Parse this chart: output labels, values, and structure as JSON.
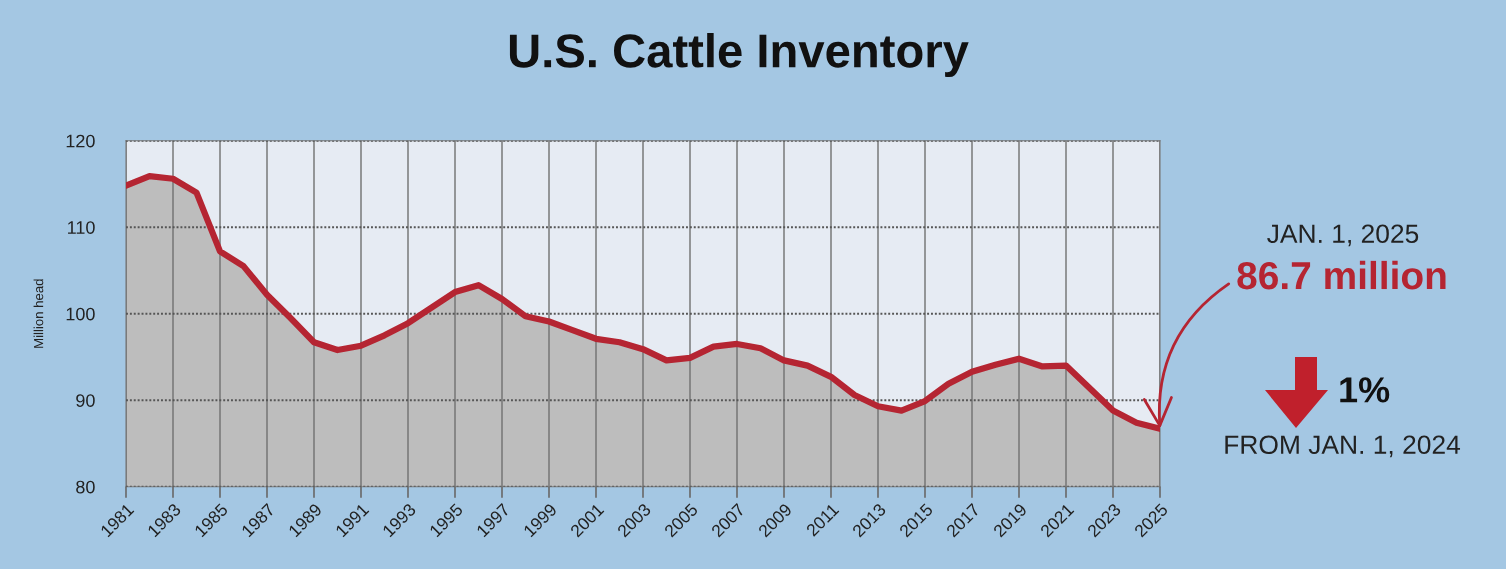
{
  "chart_data": {
    "type": "area",
    "title": "U.S. Cattle Inventory",
    "ylabel": "Million head",
    "x": [
      1981,
      1982,
      1983,
      1984,
      1985,
      1986,
      1987,
      1988,
      1989,
      1990,
      1991,
      1992,
      1993,
      1994,
      1995,
      1996,
      1997,
      1998,
      1999,
      2000,
      2001,
      2002,
      2003,
      2004,
      2005,
      2006,
      2007,
      2008,
      2009,
      2010,
      2011,
      2012,
      2013,
      2014,
      2015,
      2016,
      2017,
      2018,
      2019,
      2020,
      2021,
      2022,
      2023,
      2024,
      2025
    ],
    "series": [
      {
        "color": "#b52532",
        "values": [
          114.8,
          115.9,
          115.6,
          114.0,
          107.2,
          105.5,
          102.2,
          99.5,
          96.7,
          95.8,
          96.3,
          97.5,
          98.9,
          100.7,
          102.5,
          103.3,
          101.7,
          99.7,
          99.1,
          98.1,
          97.1,
          96.7,
          95.9,
          94.6,
          94.9,
          96.2,
          96.5,
          96.0,
          94.6,
          94.0,
          92.7,
          90.6,
          89.3,
          88.8,
          89.9,
          91.9,
          93.3,
          94.1,
          94.8,
          93.9,
          94.0,
          91.4,
          88.8,
          87.4,
          86.7
        ]
      }
    ],
    "xlim": [
      1981,
      2025
    ],
    "xticks": [
      1981,
      1983,
      1985,
      1987,
      1989,
      1991,
      1993,
      1995,
      1997,
      1999,
      2001,
      2003,
      2005,
      2007,
      2009,
      2011,
      2013,
      2015,
      2017,
      2019,
      2021,
      2023,
      2025
    ],
    "ylim": [
      80,
      120
    ],
    "yticks": [
      80,
      90,
      100,
      110,
      120
    ],
    "grid": true,
    "annotations": [
      "JAN. 1, 2025",
      {
        "text": "86.7 million",
        "x": 2025,
        "y": 86.7
      },
      "1%",
      "FROM JAN. 1, 2024"
    ]
  }
}
